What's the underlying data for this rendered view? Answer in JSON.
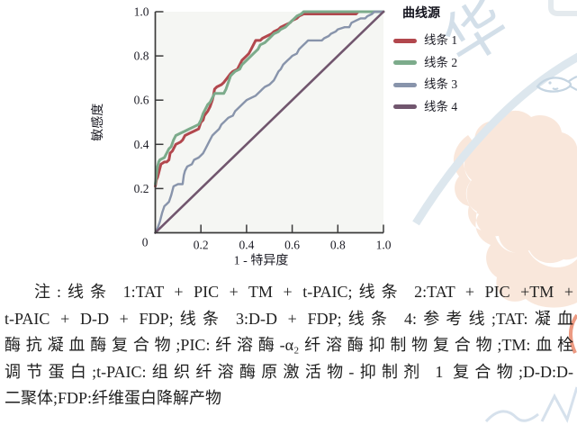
{
  "chart_data": {
    "type": "line",
    "title": "",
    "xlabel": "1 - 特异度",
    "ylabel": "敏感度",
    "xlim": [
      0,
      1
    ],
    "ylim": [
      0,
      1
    ],
    "grid": false,
    "legend": {
      "title": "曲线源",
      "position": "right"
    },
    "origin_label": "0",
    "xticks": [
      {
        "v": 0.2,
        "label": "0.2"
      },
      {
        "v": 0.4,
        "label": "0.4"
      },
      {
        "v": 0.6,
        "label": "0.6"
      },
      {
        "v": 0.8,
        "label": "0.8"
      },
      {
        "v": 1.0,
        "label": "1.0"
      }
    ],
    "yticks": [
      {
        "v": 0.2,
        "label": "0.2"
      },
      {
        "v": 0.4,
        "label": "0.4"
      },
      {
        "v": 0.6,
        "label": "0.6"
      },
      {
        "v": 0.8,
        "label": "0.8"
      },
      {
        "v": 1.0,
        "label": "1.0"
      }
    ],
    "series": [
      {
        "name": "线条 1",
        "color": "#b2474d",
        "width": 3,
        "points": [
          [
            0,
            0.21
          ],
          [
            0.005,
            0.24
          ],
          [
            0.01,
            0.25
          ],
          [
            0.015,
            0.27
          ],
          [
            0.025,
            0.31
          ],
          [
            0.04,
            0.32
          ],
          [
            0.05,
            0.32
          ],
          [
            0.06,
            0.33
          ],
          [
            0.065,
            0.36
          ],
          [
            0.075,
            0.37
          ],
          [
            0.08,
            0.38
          ],
          [
            0.09,
            0.4
          ],
          [
            0.11,
            0.41
          ],
          [
            0.12,
            0.42
          ],
          [
            0.13,
            0.44
          ],
          [
            0.15,
            0.45
          ],
          [
            0.17,
            0.46
          ],
          [
            0.19,
            0.47
          ],
          [
            0.2,
            0.5
          ],
          [
            0.21,
            0.51
          ],
          [
            0.215,
            0.53
          ],
          [
            0.23,
            0.55
          ],
          [
            0.24,
            0.57
          ],
          [
            0.25,
            0.6
          ],
          [
            0.255,
            0.62
          ],
          [
            0.26,
            0.65
          ],
          [
            0.27,
            0.66
          ],
          [
            0.29,
            0.67
          ],
          [
            0.3,
            0.68
          ],
          [
            0.315,
            0.7
          ],
          [
            0.33,
            0.72
          ],
          [
            0.34,
            0.73
          ],
          [
            0.36,
            0.74
          ],
          [
            0.37,
            0.76
          ],
          [
            0.38,
            0.78
          ],
          [
            0.4,
            0.8
          ],
          [
            0.41,
            0.81
          ],
          [
            0.42,
            0.83
          ],
          [
            0.43,
            0.85
          ],
          [
            0.44,
            0.87
          ],
          [
            0.46,
            0.87
          ],
          [
            0.47,
            0.88
          ],
          [
            0.49,
            0.89
          ],
          [
            0.51,
            0.9
          ],
          [
            0.52,
            0.91
          ],
          [
            0.54,
            0.92
          ],
          [
            0.55,
            0.93
          ],
          [
            0.57,
            0.94
          ],
          [
            0.59,
            0.95
          ],
          [
            0.6,
            0.96
          ],
          [
            0.62,
            0.97
          ],
          [
            0.63,
            0.98
          ],
          [
            0.65,
            0.99
          ],
          [
            0.88,
            0.99
          ],
          [
            0.89,
            1.0
          ],
          [
            1,
            1
          ]
        ]
      },
      {
        "name": "线条 2",
        "color": "#7cab8b",
        "width": 3,
        "points": [
          [
            0,
            0.22
          ],
          [
            0.005,
            0.26
          ],
          [
            0.01,
            0.3
          ],
          [
            0.015,
            0.32
          ],
          [
            0.02,
            0.33
          ],
          [
            0.04,
            0.34
          ],
          [
            0.05,
            0.36
          ],
          [
            0.06,
            0.38
          ],
          [
            0.07,
            0.39
          ],
          [
            0.08,
            0.42
          ],
          [
            0.09,
            0.44
          ],
          [
            0.11,
            0.45
          ],
          [
            0.13,
            0.46
          ],
          [
            0.15,
            0.47
          ],
          [
            0.17,
            0.48
          ],
          [
            0.19,
            0.49
          ],
          [
            0.2,
            0.51
          ],
          [
            0.21,
            0.54
          ],
          [
            0.22,
            0.56
          ],
          [
            0.23,
            0.58
          ],
          [
            0.24,
            0.59
          ],
          [
            0.25,
            0.61
          ],
          [
            0.26,
            0.63
          ],
          [
            0.3,
            0.63
          ],
          [
            0.31,
            0.65
          ],
          [
            0.32,
            0.68
          ],
          [
            0.33,
            0.71
          ],
          [
            0.34,
            0.72
          ],
          [
            0.35,
            0.73
          ],
          [
            0.37,
            0.74
          ],
          [
            0.38,
            0.76
          ],
          [
            0.4,
            0.78
          ],
          [
            0.42,
            0.8
          ],
          [
            0.43,
            0.81
          ],
          [
            0.45,
            0.83
          ],
          [
            0.46,
            0.85
          ],
          [
            0.48,
            0.86
          ],
          [
            0.5,
            0.88
          ],
          [
            0.52,
            0.9
          ],
          [
            0.54,
            0.91
          ],
          [
            0.55,
            0.92
          ],
          [
            0.57,
            0.93
          ],
          [
            0.58,
            0.94
          ],
          [
            0.6,
            0.96
          ],
          [
            0.61,
            0.97
          ],
          [
            0.62,
            0.98
          ],
          [
            0.64,
            0.99
          ],
          [
            0.65,
            1.0
          ],
          [
            1,
            1
          ]
        ]
      },
      {
        "name": "线条 3",
        "color": "#8894ab",
        "width": 2.4,
        "points": [
          [
            0,
            0
          ],
          [
            0.01,
            0.02
          ],
          [
            0.02,
            0.05
          ],
          [
            0.03,
            0.09
          ],
          [
            0.04,
            0.12
          ],
          [
            0.05,
            0.13
          ],
          [
            0.06,
            0.14
          ],
          [
            0.07,
            0.17
          ],
          [
            0.08,
            0.21
          ],
          [
            0.1,
            0.22
          ],
          [
            0.12,
            0.22
          ],
          [
            0.125,
            0.26
          ],
          [
            0.13,
            0.28
          ],
          [
            0.14,
            0.3
          ],
          [
            0.16,
            0.31
          ],
          [
            0.17,
            0.33
          ],
          [
            0.19,
            0.34
          ],
          [
            0.2,
            0.35
          ],
          [
            0.21,
            0.36
          ],
          [
            0.22,
            0.38
          ],
          [
            0.23,
            0.4
          ],
          [
            0.24,
            0.42
          ],
          [
            0.25,
            0.44
          ],
          [
            0.26,
            0.45
          ],
          [
            0.28,
            0.47
          ],
          [
            0.29,
            0.49
          ],
          [
            0.3,
            0.5
          ],
          [
            0.32,
            0.52
          ],
          [
            0.34,
            0.53
          ],
          [
            0.35,
            0.55
          ],
          [
            0.36,
            0.56
          ],
          [
            0.38,
            0.58
          ],
          [
            0.4,
            0.6
          ],
          [
            0.42,
            0.61
          ],
          [
            0.44,
            0.62
          ],
          [
            0.46,
            0.64
          ],
          [
            0.47,
            0.65
          ],
          [
            0.48,
            0.66
          ],
          [
            0.5,
            0.67
          ],
          [
            0.52,
            0.69
          ],
          [
            0.53,
            0.71
          ],
          [
            0.54,
            0.73
          ],
          [
            0.55,
            0.74
          ],
          [
            0.56,
            0.76
          ],
          [
            0.58,
            0.78
          ],
          [
            0.59,
            0.79
          ],
          [
            0.6,
            0.8
          ],
          [
            0.62,
            0.81
          ],
          [
            0.63,
            0.83
          ],
          [
            0.64,
            0.84
          ],
          [
            0.65,
            0.85
          ],
          [
            0.66,
            0.86
          ],
          [
            0.67,
            0.87
          ],
          [
            0.73,
            0.87
          ],
          [
            0.74,
            0.88
          ],
          [
            0.76,
            0.89
          ],
          [
            0.77,
            0.9
          ],
          [
            0.79,
            0.91
          ],
          [
            0.8,
            0.92
          ],
          [
            0.83,
            0.93
          ],
          [
            0.85,
            0.93
          ],
          [
            0.86,
            0.95
          ],
          [
            0.88,
            0.96
          ],
          [
            0.9,
            0.97
          ],
          [
            0.92,
            0.97
          ],
          [
            0.93,
            0.98
          ],
          [
            0.95,
            0.99
          ],
          [
            0.96,
            1.0
          ],
          [
            1,
            1
          ]
        ]
      },
      {
        "name": "线条 4",
        "color": "#71566e",
        "width": 2.6,
        "points": [
          [
            0,
            0
          ],
          [
            1,
            1
          ]
        ]
      }
    ]
  },
  "caption": {
    "lines": [
      "注:线条 1:TAT + PIC + TM + t-PAIC;线条 2:TAT + PIC +TM +",
      "t-PAIC + D-D + FDP;线条 3:D-D + FDP;线条 4:参考线;TAT:凝血",
      "酶抗凝血酶复合物;PIC:纤溶酶-α₂纤溶酶抑制物复合物;TM:血栓",
      "调节蛋白;t-PAIC:组织纤溶酶原激活物-抑制剂 1 复合物;D-D:D-",
      "二聚体;FDP:纤维蛋白降解产物"
    ]
  }
}
